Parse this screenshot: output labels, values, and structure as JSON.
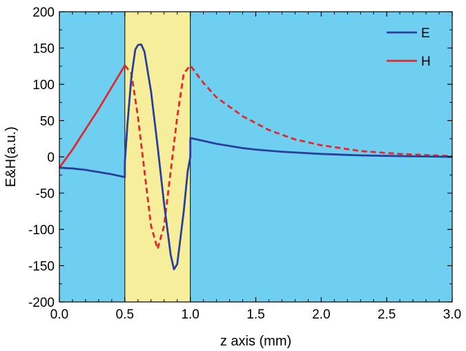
{
  "chart_data": {
    "type": "line",
    "xlabel": "z axis (mm)",
    "ylabel": "E&H(a.u.)",
    "xlim": [
      0.0,
      3.0
    ],
    "ylim": [
      -200,
      200
    ],
    "xticks": [
      "0.0",
      "0.5",
      "1.0",
      "1.5",
      "2.0",
      "2.5",
      "3.0"
    ],
    "yticks": [
      "200",
      "150",
      "100",
      "50",
      "0",
      "-50",
      "-100",
      "-150",
      "-200"
    ],
    "grid": false,
    "legend_position": "top-right",
    "background_color": "#6ecff0",
    "region": {
      "x_start": 0.5,
      "x_end": 1.0,
      "color": "#f6ee9a"
    },
    "series": [
      {
        "name": "E",
        "color": "#2a3e9c",
        "style": "solid",
        "x": [
          0.0,
          0.1,
          0.2,
          0.3,
          0.4,
          0.5,
          0.5,
          0.52,
          0.55,
          0.58,
          0.6,
          0.625,
          0.65,
          0.7,
          0.75,
          0.8,
          0.85,
          0.875,
          0.9,
          0.95,
          0.98,
          1.0,
          1.0,
          1.1,
          1.2,
          1.3,
          1.4,
          1.5,
          1.7,
          2.0,
          2.3,
          2.6,
          3.0
        ],
        "y": [
          -15,
          -16,
          -18,
          -21,
          -24,
          -28,
          -8,
          45,
          110,
          148,
          154,
          155,
          145,
          90,
          15,
          -65,
          -135,
          -155,
          -148,
          -75,
          -20,
          0,
          26,
          22,
          18,
          15,
          12,
          10,
          7,
          4,
          2,
          1,
          0
        ]
      },
      {
        "name": "H",
        "color": "#e0282e",
        "style": "mixed",
        "x": [
          0.0,
          0.1,
          0.2,
          0.3,
          0.4,
          0.5,
          0.55,
          0.6,
          0.65,
          0.7,
          0.75,
          0.8,
          0.85,
          0.9,
          0.95,
          1.0,
          1.1,
          1.2,
          1.4,
          1.6,
          1.8,
          2.0,
          2.3,
          2.6,
          3.0
        ],
        "y": [
          -15,
          10,
          38,
          66,
          96,
          126,
          115,
          55,
          -20,
          -95,
          -127,
          -95,
          -20,
          55,
          115,
          126,
          102,
          82,
          56,
          37,
          24,
          16,
          8,
          4,
          1
        ]
      }
    ]
  }
}
